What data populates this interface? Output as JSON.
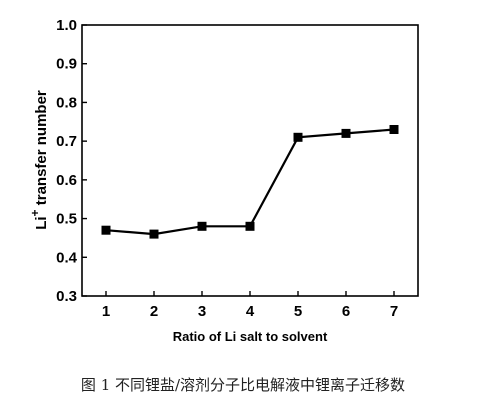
{
  "chart_data": {
    "type": "line",
    "x": [
      1,
      2,
      3,
      4,
      5,
      6,
      7
    ],
    "series": [
      {
        "values": [
          0.47,
          0.46,
          0.48,
          0.48,
          0.71,
          0.72,
          0.73
        ]
      }
    ],
    "xlabel": "Ratio of Li salt to solvent",
    "ylabel_main": "Li",
    "ylabel_sup": "+",
    "ylabel_rest": " transfer number",
    "xlim": [
      0.5,
      7.5
    ],
    "ylim": [
      0.3,
      1.0
    ],
    "xticks": [
      "1",
      "2",
      "3",
      "4",
      "5",
      "6",
      "7"
    ],
    "yticks": [
      "0.3",
      "0.4",
      "0.5",
      "0.6",
      "0.7",
      "0.8",
      "0.9",
      "1.0"
    ],
    "grid": false,
    "line_color": "#000000",
    "marker": "square"
  },
  "caption": "图 1 不同锂盐/溶剂分子比电解液中锂离子迁移数"
}
